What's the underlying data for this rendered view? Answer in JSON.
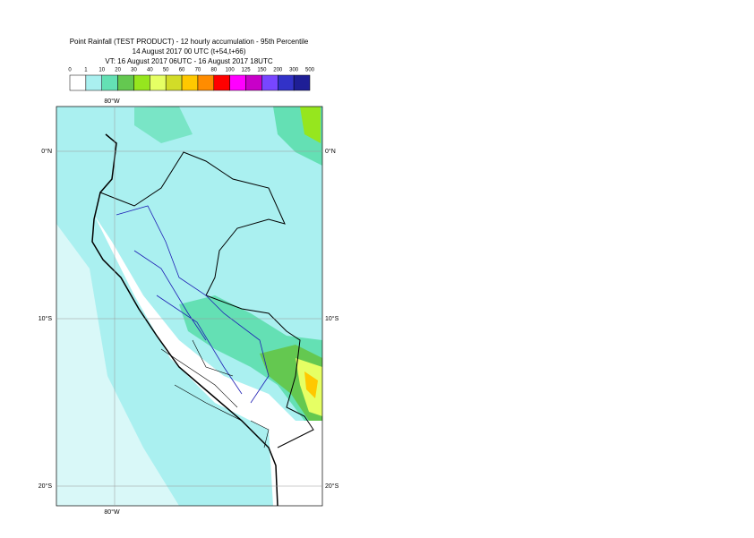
{
  "header": {
    "lines": [
      "Point Rainfall (TEST PRODUCT) - 12 hourly accumulation - 95th Percentile",
      "14 August 2017 00 UTC (t+54,t+66)",
      "VT: 16 August 2017 06UTC - 16 August 2017 18UTC"
    ]
  },
  "legend": {
    "thresholds": [
      0,
      1,
      10,
      20,
      30,
      40,
      50,
      60,
      70,
      80,
      100,
      125,
      150,
      200,
      300,
      500
    ],
    "colors": [
      "#ffffff",
      "#aaf0f0",
      "#64e0b4",
      "#64c850",
      "#96e61e",
      "#e6ff64",
      "#d2dc28",
      "#ffc800",
      "#ff8c00",
      "#ff0000",
      "#ff00ff",
      "#c800c8",
      "#7846ff",
      "#3232c8",
      "#1e1e96",
      "#0a0a50"
    ]
  },
  "map": {
    "lon_labels": [
      "80°W"
    ],
    "lat_labels": [
      "0°N",
      "10°S",
      "20°S"
    ]
  }
}
